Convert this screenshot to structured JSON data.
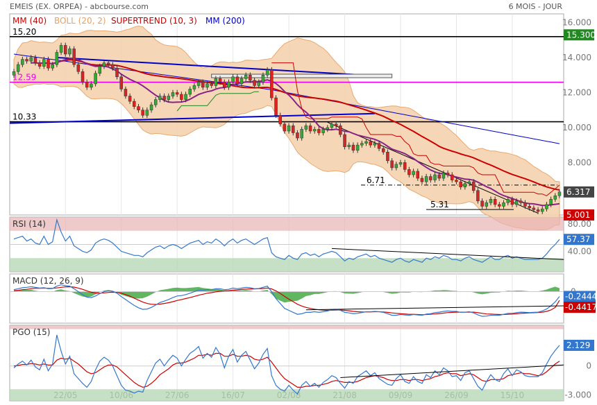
{
  "header": {
    "title": "EMEIS (EX. ORPEA) - abcbourse.com",
    "period": "6 MOIS - JOUR"
  },
  "colors": {
    "candle_up": "#33aa33",
    "candle_down": "#dd2222",
    "mm40": "#cc0000",
    "mm200": "#0000cc",
    "boll_fill": "#f5d2b0",
    "boll_line": "#e8a060",
    "trendline": "#0000cc",
    "level_magenta": "#ee00ee",
    "rsi": "#3377cc",
    "macd": "#3377cc",
    "macd_signal": "#cc0000",
    "macd_hist": "#44aa44",
    "pgo": "#3377cc",
    "pgo_signal": "#cc0000"
  },
  "chart_data": [
    {
      "type": "candlestick",
      "legend": [
        {
          "label": "MM (40)",
          "color": "#cc0000"
        },
        {
          "label": "BOLL (20, 2)",
          "color": "#e8a060"
        },
        {
          "label": "SUPERTREND (10, 3)",
          "color": "#cc0000"
        },
        {
          "label": "MM (200)",
          "color": "#0000cc"
        }
      ],
      "x_ticks": [
        "22/05",
        "10/06",
        "27/06",
        "16/07",
        "02/08",
        "21/08",
        "09/09",
        "26/09",
        "15/10"
      ],
      "x_tick_index": [
        12,
        25,
        38,
        51,
        64,
        77,
        90,
        103,
        116
      ],
      "ylim": [
        5.0,
        16.5
      ],
      "y_ticks": [
        "16.000",
        "14.000",
        "12.000",
        "10.000",
        "8.000"
      ],
      "y_tick_values": [
        16,
        14,
        12,
        10,
        8
      ],
      "levels": [
        {
          "label": "15.20",
          "value": 15.2,
          "color": "#000000"
        },
        {
          "label": "12.59",
          "value": 12.59,
          "color": "#ee00ee"
        },
        {
          "label": "10.33",
          "value": 10.33,
          "color": "#000000"
        }
      ],
      "annotations": [
        {
          "label": "6.71",
          "value": 6.71
        },
        {
          "label": "5.31",
          "value": 5.31
        }
      ],
      "badges": [
        {
          "label": "15.300",
          "value": 15.3,
          "color": "#228822"
        },
        {
          "label": "6.317",
          "value": 6.317,
          "color": "#444444"
        },
        {
          "label": "5.001",
          "value": 5.001,
          "color": "#cc0000"
        }
      ],
      "close": [
        13.2,
        13.6,
        13.9,
        13.8,
        14.0,
        13.7,
        13.5,
        13.9,
        13.4,
        13.6,
        14.3,
        14.7,
        14.2,
        14.5,
        13.6,
        13.2,
        12.6,
        12.3,
        12.5,
        13.1,
        13.5,
        13.7,
        13.6,
        13.4,
        12.9,
        12.2,
        11.8,
        11.5,
        11.2,
        11.0,
        10.7,
        11.0,
        11.3,
        11.6,
        11.8,
        11.6,
        11.8,
        12.0,
        11.9,
        11.6,
        11.9,
        12.2,
        12.4,
        12.6,
        12.3,
        12.5,
        12.4,
        12.8,
        12.6,
        12.3,
        12.6,
        12.9,
        12.5,
        12.8,
        13.0,
        12.7,
        12.4,
        12.6,
        13.0,
        13.3,
        11.7,
        10.7,
        10.2,
        9.8,
        10.1,
        9.7,
        9.4,
        9.9,
        10.1,
        9.8,
        9.9,
        9.7,
        9.9,
        10.0,
        10.2,
        10.1,
        9.6,
        8.9,
        9.0,
        8.7,
        9.0,
        9.1,
        9.2,
        9.0,
        9.1,
        8.8,
        8.6,
        8.1,
        7.7,
        7.9,
        8.0,
        7.6,
        7.3,
        7.5,
        7.1,
        6.9,
        7.2,
        7.0,
        7.3,
        7.1,
        7.4,
        7.3,
        7.0,
        6.9,
        6.6,
        6.8,
        6.9,
        6.4,
        5.8,
        5.5,
        5.7,
        5.9,
        5.6,
        5.5,
        5.7,
        5.9,
        5.6,
        5.8,
        5.7,
        5.5,
        5.4,
        5.3,
        5.2,
        5.35,
        5.6,
        5.9,
        6.1,
        6.317
      ],
      "candle_dir": [
        1,
        1,
        1,
        0,
        1,
        0,
        0,
        1,
        0,
        1,
        1,
        1,
        0,
        1,
        0,
        0,
        0,
        0,
        1,
        1,
        1,
        1,
        0,
        0,
        0,
        0,
        0,
        0,
        0,
        0,
        0,
        1,
        1,
        1,
        1,
        0,
        1,
        1,
        0,
        0,
        1,
        1,
        1,
        1,
        0,
        1,
        0,
        1,
        0,
        0,
        1,
        1,
        0,
        1,
        1,
        0,
        0,
        1,
        1,
        1,
        0,
        0,
        0,
        0,
        1,
        0,
        0,
        1,
        1,
        0,
        1,
        0,
        1,
        1,
        1,
        0,
        0,
        0,
        1,
        0,
        1,
        1,
        1,
        0,
        1,
        0,
        0,
        0,
        0,
        1,
        1,
        0,
        0,
        1,
        0,
        0,
        1,
        0,
        1,
        0,
        1,
        0,
        0,
        0,
        0,
        1,
        1,
        0,
        0,
        0,
        1,
        1,
        0,
        0,
        1,
        1,
        0,
        1,
        0,
        0,
        0,
        0,
        0,
        1,
        1,
        1,
        1,
        1
      ]
    },
    {
      "type": "line",
      "title": "RSI (14)",
      "ylim": [
        10,
        90
      ],
      "y_ticks": [
        "80.00",
        "40.00"
      ],
      "y_tick_values": [
        80,
        40
      ],
      "badge": {
        "label": "57.37",
        "value": 57.37,
        "color": "#3377cc"
      },
      "values": [
        58,
        60,
        62,
        55,
        58,
        52,
        50,
        62,
        50,
        54,
        86,
        68,
        55,
        62,
        48,
        44,
        40,
        38,
        42,
        52,
        56,
        58,
        56,
        52,
        46,
        40,
        38,
        36,
        34,
        34,
        32,
        38,
        42,
        46,
        48,
        44,
        48,
        50,
        48,
        44,
        48,
        52,
        54,
        56,
        50,
        54,
        52,
        58,
        54,
        48,
        54,
        58,
        52,
        56,
        58,
        54,
        50,
        54,
        58,
        60,
        38,
        32,
        30,
        28,
        34,
        30,
        28,
        36,
        38,
        34,
        36,
        32,
        36,
        38,
        40,
        38,
        32,
        26,
        30,
        28,
        32,
        34,
        36,
        32,
        34,
        30,
        28,
        26,
        24,
        28,
        30,
        26,
        24,
        28,
        26,
        24,
        30,
        28,
        32,
        30,
        34,
        32,
        28,
        28,
        26,
        30,
        32,
        28,
        26,
        24,
        28,
        32,
        28,
        28,
        32,
        34,
        30,
        32,
        30,
        28,
        28,
        28,
        28,
        30,
        36,
        44,
        50,
        57.37
      ]
    },
    {
      "type": "line",
      "title": "MACD (12, 26, 9)",
      "ylim": [
        -1.6,
        0.9
      ],
      "y_ticks": [
        "0"
      ],
      "y_tick_values": [
        0
      ],
      "badges": [
        {
          "label": "-0.2444",
          "value": -0.2444,
          "color": "#3377cc"
        },
        {
          "label": "-0.4417",
          "value": -0.4417,
          "color": "#cc0000"
        }
      ],
      "macd": [
        0.1,
        0.15,
        0.2,
        0.22,
        0.25,
        0.22,
        0.18,
        0.2,
        0.15,
        0.16,
        0.28,
        0.35,
        0.3,
        0.28,
        0.15,
        0.0,
        -0.15,
        -0.28,
        -0.3,
        -0.22,
        -0.1,
        0.0,
        0.05,
        0.02,
        -0.08,
        -0.25,
        -0.4,
        -0.55,
        -0.7,
        -0.82,
        -0.9,
        -0.88,
        -0.8,
        -0.68,
        -0.55,
        -0.48,
        -0.4,
        -0.3,
        -0.22,
        -0.2,
        -0.15,
        -0.08,
        0.0,
        0.08,
        0.08,
        0.1,
        0.1,
        0.15,
        0.15,
        0.1,
        0.12,
        0.18,
        0.15,
        0.18,
        0.22,
        0.2,
        0.15,
        0.16,
        0.22,
        0.28,
        0.0,
        -0.35,
        -0.6,
        -0.85,
        -0.95,
        -1.05,
        -1.15,
        -1.12,
        -1.05,
        -1.05,
        -1.02,
        -1.05,
        -1.02,
        -0.98,
        -0.92,
        -0.9,
        -0.95,
        -1.05,
        -1.08,
        -1.12,
        -1.1,
        -1.06,
        -1.02,
        -1.02,
        -1.0,
        -1.02,
        -1.05,
        -1.12,
        -1.2,
        -1.2,
        -1.16,
        -1.18,
        -1.2,
        -1.16,
        -1.18,
        -1.2,
        -1.14,
        -1.12,
        -1.06,
        -1.04,
        -1.0,
        -0.98,
        -1.0,
        -1.0,
        -1.05,
        -1.04,
        -1.02,
        -1.08,
        -1.18,
        -1.25,
        -1.24,
        -1.2,
        -1.2,
        -1.2,
        -1.15,
        -1.1,
        -1.1,
        -1.06,
        -1.04,
        -1.05,
        -1.06,
        -1.05,
        -1.04,
        -0.98,
        -0.88,
        -0.72,
        -0.52,
        -0.2444
      ],
      "signal": [
        0.05,
        0.07,
        0.1,
        0.12,
        0.15,
        0.17,
        0.17,
        0.18,
        0.17,
        0.17,
        0.19,
        0.22,
        0.24,
        0.25,
        0.23,
        0.18,
        0.12,
        0.04,
        -0.03,
        -0.07,
        -0.08,
        -0.06,
        -0.04,
        -0.03,
        -0.04,
        -0.08,
        -0.15,
        -0.23,
        -0.33,
        -0.43,
        -0.53,
        -0.6,
        -0.64,
        -0.65,
        -0.63,
        -0.6,
        -0.56,
        -0.51,
        -0.45,
        -0.4,
        -0.35,
        -0.3,
        -0.24,
        -0.18,
        -0.13,
        -0.08,
        -0.05,
        -0.01,
        0.02,
        0.04,
        0.05,
        0.08,
        0.09,
        0.11,
        0.13,
        0.14,
        0.14,
        0.15,
        0.16,
        0.18,
        0.14,
        0.04,
        -0.09,
        -0.24,
        -0.38,
        -0.51,
        -0.64,
        -0.73,
        -0.8,
        -0.85,
        -0.89,
        -0.92,
        -0.94,
        -0.95,
        -0.94,
        -0.93,
        -0.93,
        -0.95,
        -0.97,
        -1.0,
        -1.02,
        -1.03,
        -1.03,
        -1.03,
        -1.02,
        -1.02,
        -1.03,
        -1.05,
        -1.08,
        -1.1,
        -1.12,
        -1.13,
        -1.15,
        -1.15,
        -1.16,
        -1.17,
        -1.16,
        -1.15,
        -1.13,
        -1.11,
        -1.09,
        -1.06,
        -1.05,
        -1.04,
        -1.04,
        -1.04,
        -1.04,
        -1.04,
        -1.07,
        -1.1,
        -1.13,
        -1.14,
        -1.15,
        -1.16,
        -1.16,
        -1.15,
        -1.14,
        -1.12,
        -1.1,
        -1.09,
        -1.08,
        -1.07,
        -1.06,
        -1.04,
        -1.0,
        -0.93,
        -0.8,
        -0.4417
      ]
    },
    {
      "type": "line",
      "title": "PGO (15)",
      "ylim": [
        -3.6,
        4.2
      ],
      "y_ticks": [
        "0",
        "-3.000"
      ],
      "y_tick_values": [
        0,
        -3
      ],
      "badge": {
        "label": "2.129",
        "value": 2.129,
        "color": "#3377cc"
      },
      "pgo": [
        -0.2,
        0.2,
        0.5,
        0.1,
        0.6,
        -0.1,
        -0.4,
        0.7,
        -0.5,
        0.2,
        3.2,
        1.5,
        0.2,
        1.0,
        -0.8,
        -1.3,
        -1.8,
        -2.2,
        -1.6,
        -0.4,
        0.5,
        0.9,
        0.6,
        0.0,
        -1.0,
        -2.0,
        -2.5,
        -2.6,
        -2.8,
        -2.6,
        -2.7,
        -1.5,
        -0.6,
        0.3,
        0.7,
        0.0,
        0.6,
        1.1,
        0.8,
        0.0,
        0.7,
        1.3,
        1.6,
        2.0,
        0.8,
        1.3,
        0.9,
        1.9,
        1.2,
        -0.2,
        1.0,
        1.7,
        0.4,
        1.1,
        1.5,
        0.6,
        -0.3,
        0.3,
        1.2,
        1.8,
        -1.0,
        -2.0,
        -2.4,
        -2.6,
        -2.0,
        -2.5,
        -2.9,
        -2.0,
        -1.6,
        -2.1,
        -1.8,
        -2.2,
        -1.7,
        -1.4,
        -1.0,
        -1.2,
        -1.8,
        -2.3,
        -1.6,
        -1.8,
        -1.1,
        -0.8,
        -0.5,
        -1.0,
        -0.7,
        -1.3,
        -1.6,
        -1.9,
        -2.0,
        -1.3,
        -0.9,
        -1.6,
        -1.8,
        -1.1,
        -1.6,
        -1.8,
        -0.9,
        -1.2,
        -0.5,
        -0.9,
        -0.2,
        -0.5,
        -1.1,
        -1.0,
        -1.5,
        -0.7,
        -0.5,
        -1.3,
        -2.1,
        -2.5,
        -1.6,
        -0.9,
        -1.4,
        -1.6,
        -0.8,
        -0.3,
        -1.0,
        -0.4,
        -0.6,
        -1.0,
        -1.1,
        -1.1,
        -1.1,
        -0.7,
        0.2,
        1.0,
        1.6,
        2.129
      ],
      "signal": [
        0.0,
        0.05,
        0.15,
        0.15,
        0.25,
        0.2,
        0.1,
        0.2,
        0.1,
        0.1,
        0.6,
        0.8,
        0.7,
        0.8,
        0.5,
        0.2,
        -0.2,
        -0.6,
        -0.8,
        -0.7,
        -0.4,
        -0.1,
        0.1,
        0.1,
        -0.1,
        -0.5,
        -0.9,
        -1.3,
        -1.7,
        -2.0,
        -2.2,
        -2.1,
        -1.8,
        -1.4,
        -0.9,
        -0.6,
        -0.3,
        0.1,
        0.3,
        0.3,
        0.4,
        0.6,
        0.8,
        1.1,
        1.1,
        1.2,
        1.1,
        1.3,
        1.3,
        1.0,
        1.0,
        1.2,
        1.0,
        1.0,
        1.1,
        1.0,
        0.7,
        0.6,
        0.7,
        0.9,
        0.4,
        -0.2,
        -0.8,
        -1.3,
        -1.6,
        -1.9,
        -2.2,
        -2.2,
        -2.1,
        -2.1,
        -2.0,
        -2.0,
        -1.9,
        -1.8,
        -1.6,
        -1.5,
        -1.6,
        -1.7,
        -1.7,
        -1.7,
        -1.6,
        -1.4,
        -1.2,
        -1.1,
        -1.0,
        -1.1,
        -1.2,
        -1.4,
        -1.5,
        -1.5,
        -1.4,
        -1.4,
        -1.5,
        -1.4,
        -1.4,
        -1.5,
        -1.4,
        -1.3,
        -1.1,
        -1.0,
        -0.8,
        -0.7,
        -0.8,
        -0.8,
        -1.0,
        -0.9,
        -0.8,
        -0.9,
        -1.2,
        -1.5,
        -1.6,
        -1.4,
        -1.4,
        -1.4,
        -1.3,
        -1.0,
        -0.9,
        -0.8,
        -0.7,
        -0.8,
        -0.8,
        -0.9,
        -1.0,
        -0.9,
        -0.6,
        -0.2,
        0.2,
        0.5
      ]
    }
  ]
}
